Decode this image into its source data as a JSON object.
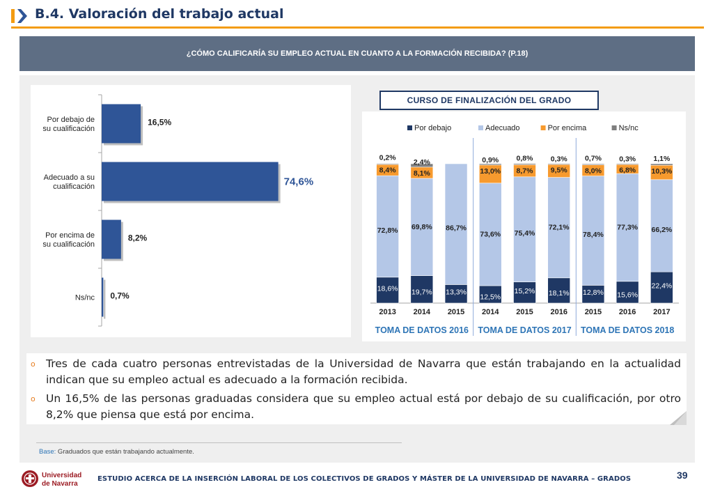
{
  "header": {
    "section_title": "B.4. Valoración del trabajo actual",
    "question": "¿CÓMO CALIFICARÍA SU EMPLEO ACTUAL EN CUANTO A LA FORMACIÓN RECIBIDA? (P.18)",
    "accent_color": "#f39c12"
  },
  "curso_label": "CURSO DE FINALIZACIÓN DEL GRADO",
  "chart_data": [
    {
      "type": "bar",
      "orientation": "horizontal",
      "categories": [
        [
          "Por debajo de",
          "su cualificación"
        ],
        [
          "Adecuado a su",
          "cualificación"
        ],
        [
          "Por encima de",
          "su cualificación"
        ],
        [
          "Ns/nc"
        ]
      ],
      "values": [
        16.5,
        74.6,
        8.2,
        0.7
      ],
      "value_labels": [
        "16,5%",
        "74,6%",
        "8,2%",
        "0,7%"
      ],
      "xlim": [
        0,
        100
      ],
      "bar_color": "#2f5597"
    },
    {
      "type": "bar",
      "stacked": true,
      "categories": [
        "2013",
        "2014",
        "2015",
        "2014",
        "2015",
        "2016",
        "2015",
        "2016",
        "2017"
      ],
      "groups": [
        {
          "label": "TOMA DE DATOS 2016",
          "span": [
            0,
            2
          ]
        },
        {
          "label": "TOMA DE DATOS 2017",
          "span": [
            3,
            5
          ]
        },
        {
          "label": "TOMA DE DATOS 2018",
          "span": [
            6,
            8
          ]
        }
      ],
      "legend": [
        "Por debajo",
        "Adecuado",
        "Por encima",
        "Ns/nc"
      ],
      "legend_position": "top",
      "series": [
        {
          "name": "Por debajo",
          "color": "#1f3864",
          "values": [
            18.6,
            19.7,
            13.3,
            12.5,
            15.2,
            18.1,
            12.8,
            15.6,
            22.4
          ],
          "labels": [
            "18,6%",
            "19,7%",
            "13,3%",
            "12,5%",
            "15,2%",
            "18,1%",
            "12,8%",
            "15,6%",
            "22,4%"
          ]
        },
        {
          "name": "Adecuado",
          "color": "#b4c7e7",
          "values": [
            72.8,
            69.8,
            86.7,
            73.6,
            75.4,
            72.1,
            78.4,
            77.3,
            66.2
          ],
          "labels": [
            "72,8%",
            "69,8%",
            "86,7%",
            "73,6%",
            "75,4%",
            "72,1%",
            "78,4%",
            "77,3%",
            "66,2%"
          ]
        },
        {
          "name": "Por encima",
          "color": "#f79a2e",
          "values": [
            8.4,
            8.1,
            0,
            13.0,
            8.7,
            9.5,
            8.0,
            6.8,
            10.3
          ],
          "labels": [
            "8,4%",
            "8,1%",
            "",
            "13,0%",
            "8,7%",
            "9,5%",
            "8,0%",
            "6,8%",
            "10,3%"
          ]
        },
        {
          "name": "Ns/nc",
          "color": "#7f7f7f",
          "values": [
            0.2,
            2.4,
            0,
            0.9,
            0.8,
            0.3,
            0.7,
            0.3,
            1.1
          ],
          "labels": [
            "0,2%",
            "2,4%",
            "",
            "0,9%",
            "0,8%",
            "0,3%",
            "0,7%",
            "0,3%",
            "1,1%"
          ]
        }
      ],
      "ylim": [
        0,
        100
      ]
    }
  ],
  "bullets": [
    "Tres de cada cuatro personas entrevistadas de la Universidad de Navarra que están trabajando en la actualidad indican que su empleo actual es adecuado a la formación recibida.",
    "Un 16,5% de las personas graduadas considera que su empleo actual está por debajo de su cualificación, por otro 8,2% que piensa que está por encima."
  ],
  "base_note": {
    "label": "Base:",
    "text": " Graduados que están trabajando actualmente."
  },
  "footer": {
    "logo_text": [
      "Universidad",
      "de Navarra"
    ],
    "study_title": "ESTUDIO ACERCA DE LA INSERCIÓN LABORAL DE LOS COLECTIVOS DE GRADOS Y MÁSTER DE LA UNIVERSIDAD DE NAVARRA – GRADOS",
    "page_number": "39"
  }
}
